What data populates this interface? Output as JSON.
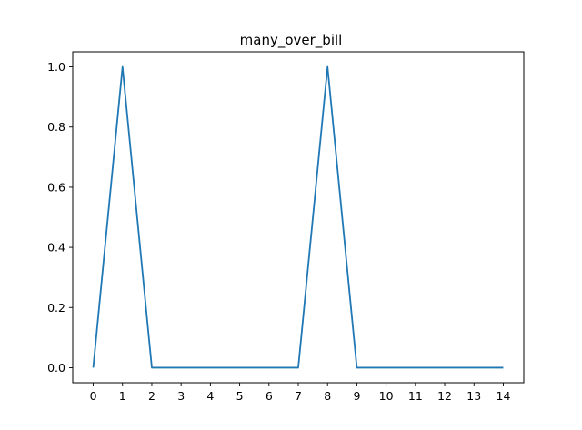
{
  "chart_data": {
    "type": "line",
    "title": "many_over_bill",
    "xlabel": "",
    "ylabel": "",
    "x": [
      0,
      1,
      2,
      3,
      4,
      5,
      6,
      7,
      8,
      9,
      10,
      11,
      12,
      13,
      14
    ],
    "series": [
      {
        "values": [
          0,
          1,
          0,
          0,
          0,
          0,
          0,
          0,
          1,
          0,
          0,
          0,
          0,
          0,
          0
        ],
        "color": "#1f77b4"
      }
    ],
    "xlim": [
      -0.7,
      14.7
    ],
    "ylim": [
      -0.05,
      1.05
    ],
    "x_ticks": [
      0,
      1,
      2,
      3,
      4,
      5,
      6,
      7,
      8,
      9,
      10,
      11,
      12,
      13,
      14
    ],
    "y_ticks": [
      0.0,
      0.2,
      0.4,
      0.6,
      0.8,
      1.0
    ],
    "y_tick_labels": [
      "0.0",
      "0.2",
      "0.4",
      "0.6",
      "0.8",
      "1.0"
    ],
    "grid": false,
    "legend": "none"
  }
}
